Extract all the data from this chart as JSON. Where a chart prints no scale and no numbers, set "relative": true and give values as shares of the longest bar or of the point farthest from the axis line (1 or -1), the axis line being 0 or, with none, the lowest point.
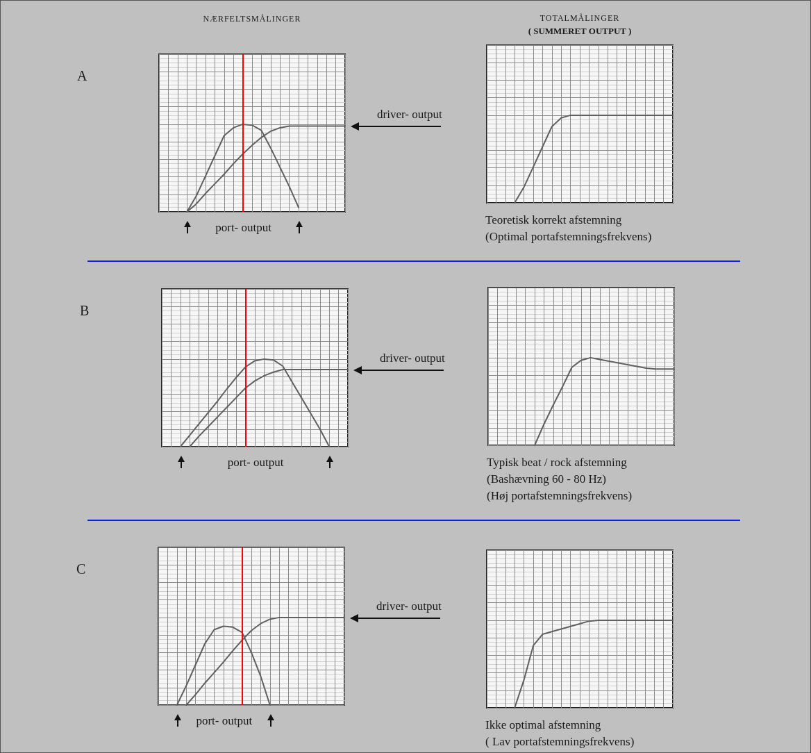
{
  "chart_data": [
    {
      "type": "line",
      "title": "NÆRFELTSMÅLINGER",
      "annotations": [
        "A",
        "driver- output",
        "port- output"
      ],
      "relative": true,
      "grid": true,
      "marker": "none",
      "line_style": "solid",
      "categories": [
        null,
        null,
        null,
        null,
        null,
        null,
        null,
        null,
        null,
        null,
        null,
        null,
        null,
        null,
        null,
        null,
        null,
        null,
        null,
        null,
        null
      ],
      "series": [
        {
          "color": "#606060",
          "values": [
            null,
            null,
            null,
            0,
            0.18,
            0.41,
            0.64,
            0.87,
            0.96,
            1,
            0.99,
            0.93,
            0.73,
            0.51,
            0.29,
            0.05,
            null,
            null,
            null,
            null,
            null
          ]
        },
        {
          "color": "#606060",
          "values": [
            null,
            null,
            null,
            0,
            0.09,
            0.21,
            0.32,
            0.43,
            0.55,
            0.66,
            0.76,
            0.85,
            0.92,
            0.96,
            0.98,
            0.98,
            0.98,
            0.98,
            0.98,
            0.98,
            0.98
          ]
        }
      ]
    },
    {
      "type": "line",
      "title": "TOTALMÅLINGER",
      "subtitle": "( SUMMERET OUTPUT )",
      "annotations": [
        "Teoretisk korrekt afstemning",
        "(Optimal portafstemningsfrekvens)"
      ],
      "relative": true,
      "grid": true,
      "marker": "none",
      "line_style": "solid",
      "categories": [
        null,
        null,
        null,
        null,
        null,
        null,
        null,
        null,
        null,
        null,
        null,
        null,
        null,
        null,
        null,
        null,
        null,
        null,
        null,
        null,
        null
      ],
      "series": [
        {
          "color": "#606060",
          "values": [
            null,
            null,
            null,
            0,
            0.18,
            0.41,
            0.64,
            0.87,
            0.97,
            1,
            1,
            1,
            1,
            1,
            1,
            1,
            1,
            1,
            1,
            1,
            1
          ]
        }
      ]
    },
    {
      "type": "line",
      "annotations": [
        "B",
        "driver- output",
        "port- output"
      ],
      "relative": true,
      "grid": true,
      "marker": "none",
      "line_style": "solid",
      "categories": [
        null,
        null,
        null,
        null,
        null,
        null,
        null,
        null,
        null,
        null,
        null,
        null,
        null,
        null,
        null,
        null,
        null,
        null,
        null,
        null,
        null
      ],
      "series": [
        {
          "color": "#606060",
          "values": [
            null,
            null,
            0,
            0.13,
            0.26,
            0.39,
            0.52,
            0.66,
            0.79,
            0.91,
            0.98,
            1,
            0.99,
            0.92,
            0.74,
            0.56,
            0.38,
            0.2,
            0,
            null,
            null
          ]
        },
        {
          "color": "#606060",
          "values": [
            null,
            null,
            null,
            0,
            0.12,
            0.23,
            0.34,
            0.45,
            0.56,
            0.67,
            0.75,
            0.81,
            0.85,
            0.88,
            0.88,
            0.88,
            0.88,
            0.88,
            0.88,
            0.88,
            0.88
          ]
        }
      ]
    },
    {
      "type": "line",
      "annotations": [
        "Typisk beat / rock afstemning",
        "(Bashævning 60 - 80 Hz)",
        "(Høj portafstemningsfrekvens)"
      ],
      "relative": true,
      "grid": true,
      "marker": "none",
      "line_style": "solid",
      "categories": [
        null,
        null,
        null,
        null,
        null,
        null,
        null,
        null,
        null,
        null,
        null,
        null,
        null,
        null,
        null,
        null,
        null,
        null,
        null,
        null,
        null
      ],
      "series": [
        {
          "color": "#606060",
          "values": [
            null,
            null,
            null,
            null,
            null,
            0,
            0.24,
            0.46,
            0.67,
            0.89,
            0.97,
            1,
            0.98,
            0.96,
            0.94,
            0.92,
            0.9,
            0.88,
            0.87,
            0.87,
            0.87
          ]
        }
      ]
    },
    {
      "type": "line",
      "annotations": [
        "C",
        "driver- output",
        "port- output"
      ],
      "relative": true,
      "grid": true,
      "marker": "none",
      "line_style": "solid",
      "categories": [
        null,
        null,
        null,
        null,
        null,
        null,
        null,
        null,
        null,
        null,
        null,
        null,
        null,
        null,
        null,
        null,
        null,
        null,
        null,
        null,
        null
      ],
      "series": [
        {
          "color": "#606060",
          "values": [
            null,
            null,
            0,
            0.22,
            0.46,
            0.7,
            0.86,
            0.9,
            0.89,
            0.83,
            0.6,
            0.33,
            0,
            null,
            null,
            null,
            null,
            null,
            null,
            null,
            null
          ]
        },
        {
          "color": "#606060",
          "values": [
            null,
            null,
            null,
            0,
            0.12,
            0.25,
            0.37,
            0.49,
            0.62,
            0.74,
            0.85,
            0.93,
            0.98,
            1,
            1,
            1,
            1,
            1,
            1,
            1,
            1
          ]
        }
      ]
    },
    {
      "type": "line",
      "annotations": [
        "Ikke optimal afstemning",
        "( Lav portafstemningsfrekvens)"
      ],
      "relative": true,
      "grid": true,
      "marker": "none",
      "line_style": "solid",
      "categories": [
        null,
        null,
        null,
        null,
        null,
        null,
        null,
        null,
        null,
        null,
        null,
        null,
        null,
        null,
        null,
        null,
        null,
        null,
        null,
        null,
        null
      ],
      "series": [
        {
          "color": "#606060",
          "values": [
            null,
            null,
            null,
            0,
            0.32,
            0.71,
            0.84,
            0.87,
            0.9,
            0.93,
            0.96,
            0.99,
            1,
            1,
            1,
            1,
            1,
            1,
            1,
            1,
            1
          ]
        }
      ]
    }
  ]
}
